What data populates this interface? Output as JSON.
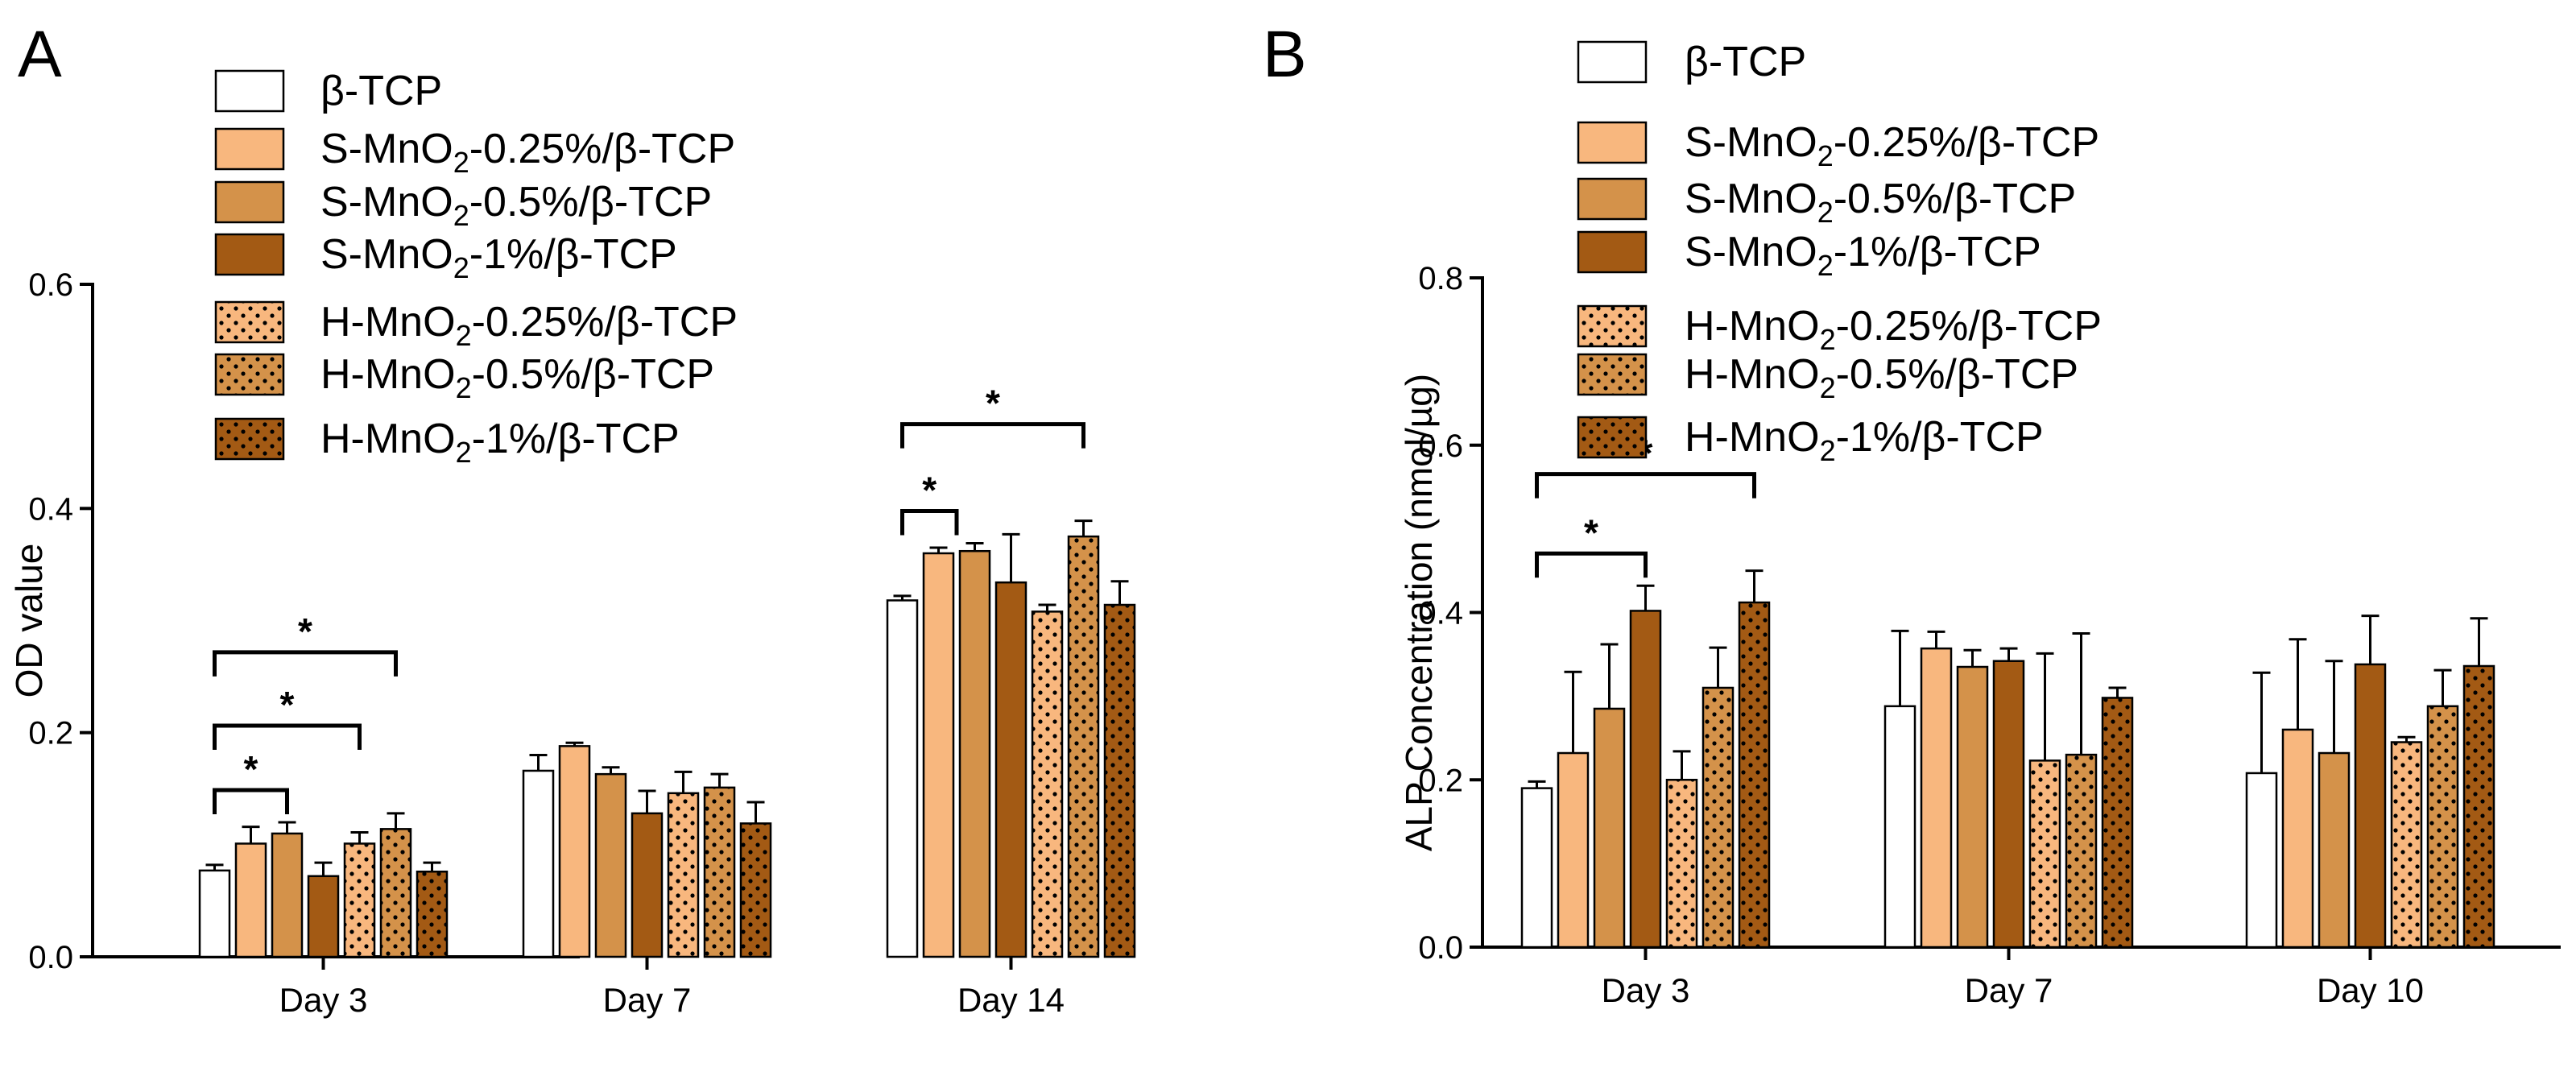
{
  "chart_data": [
    {
      "type": "bar",
      "panel_label": "A",
      "ylabel": "OD value",
      "xlabel": "",
      "ylim": [
        0,
        0.6
      ],
      "yticks": [
        "0.0",
        "0.2",
        "0.4",
        "0.6"
      ],
      "categories": [
        "Day 3",
        "Day 7",
        "Day 14"
      ],
      "series": [
        {
          "name": "β-TCP",
          "values": [
            0.077,
            0.166,
            0.318
          ],
          "errors": [
            0.005,
            0.014,
            0.004
          ]
        },
        {
          "name": "S-MnO2-0.25%/β-TCP",
          "values": [
            0.101,
            0.188,
            0.36
          ],
          "errors": [
            0.015,
            0.003,
            0.005
          ]
        },
        {
          "name": "S-MnO2-0.5%/β-TCP",
          "values": [
            0.11,
            0.163,
            0.362
          ],
          "errors": [
            0.01,
            0.006,
            0.007
          ]
        },
        {
          "name": "S-MnO2-1%/β-TCP",
          "values": [
            0.072,
            0.128,
            0.334
          ],
          "errors": [
            0.012,
            0.02,
            0.043
          ]
        },
        {
          "name": "H-MnO2-0.25%/β-TCP",
          "values": [
            0.101,
            0.146,
            0.308
          ],
          "errors": [
            0.01,
            0.019,
            0.006
          ]
        },
        {
          "name": "H-MnO2-0.5%/β-TCP",
          "values": [
            0.114,
            0.151,
            0.375
          ],
          "errors": [
            0.014,
            0.012,
            0.014
          ]
        },
        {
          "name": "H-MnO2-1%/β-TCP",
          "values": [
            0.076,
            0.119,
            0.314
          ],
          "errors": [
            0.008,
            0.019,
            0.021
          ]
        }
      ],
      "significance": [
        {
          "group": 0,
          "from": 0,
          "to": 2,
          "label": "*",
          "level": 0
        },
        {
          "group": 0,
          "from": 0,
          "to": 4,
          "label": "*",
          "level": 1
        },
        {
          "group": 0,
          "from": 0,
          "to": 5,
          "label": "*",
          "level": 2
        },
        {
          "group": 2,
          "from": 0,
          "to": 1.5,
          "label": "*",
          "level": 0
        },
        {
          "group": 2,
          "from": 0,
          "to": 5,
          "label": "*",
          "level": 1
        }
      ]
    },
    {
      "type": "bar",
      "panel_label": "B",
      "ylabel": "ALP Concentration (nmol/µg)",
      "xlabel": "",
      "ylim": [
        0,
        0.8
      ],
      "yticks": [
        "0.0",
        "0.2",
        "0.4",
        "0.6",
        "0.8"
      ],
      "categories": [
        "Day 3",
        "Day 7",
        "Day 10"
      ],
      "series": [
        {
          "name": "β-TCP",
          "values": [
            0.19,
            0.288,
            0.208
          ],
          "errors": [
            0.008,
            0.09,
            0.12
          ]
        },
        {
          "name": "S-MnO2-0.25%/β-TCP",
          "values": [
            0.232,
            0.357,
            0.26
          ],
          "errors": [
            0.097,
            0.02,
            0.108
          ]
        },
        {
          "name": "S-MnO2-0.5%/β-TCP",
          "values": [
            0.285,
            0.335,
            0.232
          ],
          "errors": [
            0.077,
            0.02,
            0.11
          ]
        },
        {
          "name": "S-MnO2-1%/β-TCP",
          "values": [
            0.402,
            0.342,
            0.338
          ],
          "errors": [
            0.03,
            0.015,
            0.058
          ]
        },
        {
          "name": "H-MnO2-0.25%/β-TCP",
          "values": [
            0.2,
            0.223,
            0.245
          ],
          "errors": [
            0.034,
            0.128,
            0.006
          ]
        },
        {
          "name": "H-MnO2-0.5%/β-TCP",
          "values": [
            0.31,
            0.23,
            0.288
          ],
          "errors": [
            0.048,
            0.145,
            0.043
          ]
        },
        {
          "name": "H-MnO2-1%/β-TCP",
          "values": [
            0.412,
            0.298,
            0.336
          ],
          "errors": [
            0.038,
            0.012,
            0.057
          ]
        }
      ],
      "significance": [
        {
          "group": 0,
          "from": 0,
          "to": 3,
          "label": "*",
          "level": 0
        },
        {
          "group": 0,
          "from": 0,
          "to": 6,
          "label": "*",
          "level": 1
        }
      ]
    }
  ],
  "legend": {
    "placement": "top-left inside plot",
    "entries": [
      {
        "prefix": "β-TCP",
        "sub": "",
        "suffix": ""
      },
      {
        "prefix": "S-MnO",
        "sub": "2",
        "suffix": "-0.25%/β-TCP"
      },
      {
        "prefix": "S-MnO",
        "sub": "2",
        "suffix": "-0.5%/β-TCP"
      },
      {
        "prefix": "S-MnO",
        "sub": "2",
        "suffix": "-1%/β-TCP"
      },
      {
        "prefix": "H-MnO",
        "sub": "2",
        "suffix": "-0.25%/β-TCP"
      },
      {
        "prefix": "H-MnO",
        "sub": "2",
        "suffix": "-0.5%/β-TCP"
      },
      {
        "prefix": "H-MnO",
        "sub": "2",
        "suffix": "-1%/β-TCP"
      }
    ]
  },
  "colors": {
    "series_fill": [
      "#ffffff",
      "#f8b77e",
      "#d4924a",
      "#a35a14",
      "#f8b77e",
      "#d4924a",
      "#a35a14"
    ],
    "series_dotted": [
      false,
      false,
      false,
      false,
      true,
      true,
      true
    ],
    "dot_color": "#000000",
    "axis": "#000000"
  }
}
